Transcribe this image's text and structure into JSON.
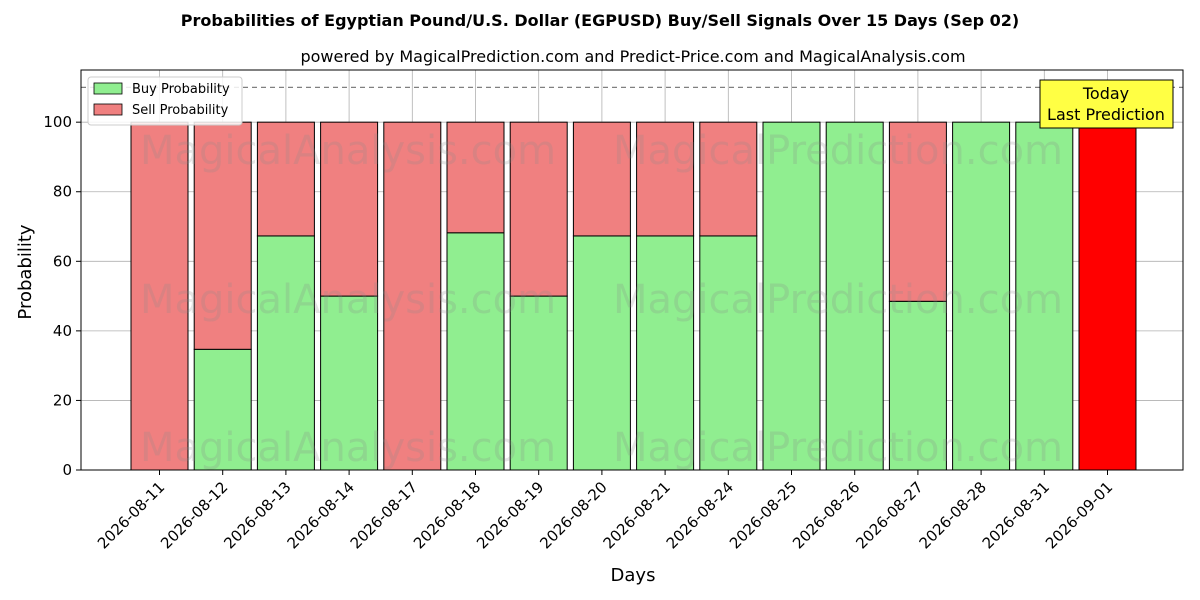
{
  "chart_data": {
    "type": "bar",
    "stacked": true,
    "title": "Probabilities of Egyptian Pound/U.S. Dollar (EGPUSD) Buy/Sell Signals Over 15 Days (Sep 02)",
    "subtitle": "powered by MagicalPrediction.com and Predict-Price.com and MagicalAnalysis.com",
    "xlabel": "Days",
    "ylabel": "Probability",
    "ylim": [
      0,
      115
    ],
    "yticks": [
      0,
      20,
      40,
      60,
      80,
      100
    ],
    "grid": true,
    "legend_position": "top-left",
    "reference_line": 110,
    "categories": [
      "2026-08-11",
      "2026-08-12",
      "2026-08-13",
      "2026-08-14",
      "2026-08-17",
      "2026-08-18",
      "2026-08-19",
      "2026-08-20",
      "2026-08-21",
      "2026-08-24",
      "2026-08-25",
      "2026-08-26",
      "2026-08-27",
      "2026-08-28",
      "2026-08-31",
      "2026-09-01"
    ],
    "series": [
      {
        "name": "Buy Probability",
        "color": "#90ee90",
        "values": [
          0,
          34.7,
          67.3,
          50,
          0,
          68.2,
          50,
          67.3,
          67.3,
          67.3,
          100,
          100,
          48.5,
          100,
          100,
          0
        ]
      },
      {
        "name": "Sell Probability",
        "color": "#f08080",
        "values": [
          100,
          65.3,
          32.7,
          50,
          100,
          31.8,
          50,
          32.7,
          32.7,
          32.7,
          0,
          0,
          51.5,
          0,
          0,
          100
        ]
      }
    ],
    "highlight": {
      "category": "2026-09-01",
      "color": "#ff0000",
      "annotation": "Today\nLast Prediction",
      "annotation_color": "#ffff44"
    },
    "watermarks": [
      "MagicalAnalysis.com",
      "MagicalPrediction.com"
    ]
  }
}
